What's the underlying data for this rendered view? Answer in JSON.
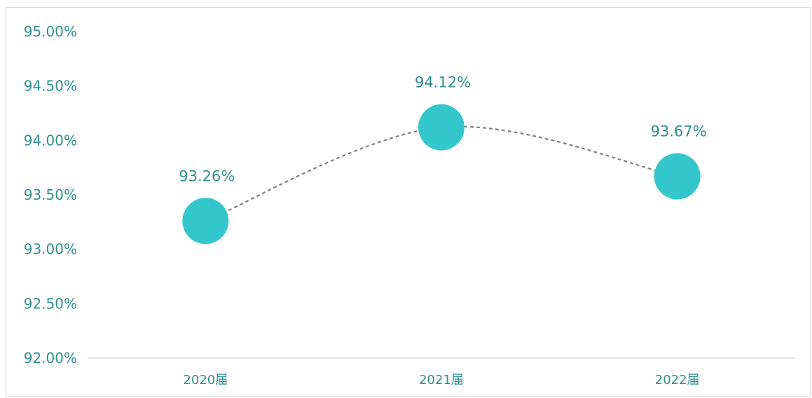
{
  "chart_data": {
    "type": "line",
    "title": "",
    "xlabel": "",
    "ylabel": "",
    "categories": [
      "2020届",
      "2021届",
      "2022届"
    ],
    "series": [
      {
        "values": [
          93.26,
          94.12,
          93.67
        ],
        "labels": [
          "93.26%",
          "94.12%",
          "93.67%"
        ]
      }
    ],
    "ylim": [
      92.0,
      95.0
    ],
    "yticks": [
      "92.00%",
      "92.50%",
      "93.00%",
      "93.50%",
      "94.00%",
      "94.50%",
      "95.00%"
    ],
    "grid": false,
    "legend": "none",
    "line_style": "dashed",
    "marker": "large-circle",
    "colors": {
      "marker": "#33c7cc",
      "line": "#808080",
      "text": "#2f8f8f",
      "axis": "#d9d9d9"
    }
  }
}
